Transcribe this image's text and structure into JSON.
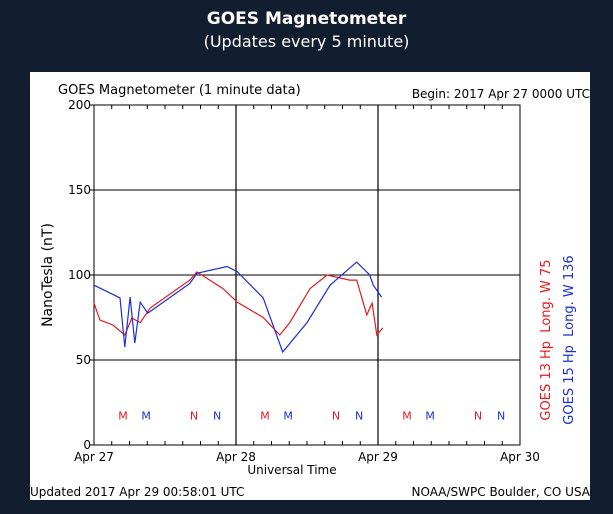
{
  "page": {
    "title": "GOES Magnetometer",
    "subtitle": "(Updates every 5 minute)"
  },
  "chart_data": {
    "type": "line",
    "title": "GOES Magnetometer (1 minute data)",
    "begin": "Begin:  2017 Apr 27 0000 UTC",
    "xlabel": "Universal Time",
    "ylabel": "NanoTesla (nT)",
    "ylim": [
      0,
      200
    ],
    "yticks": [
      0,
      50,
      100,
      150,
      200
    ],
    "xlim_hours": [
      0,
      72
    ],
    "xtick_labels": [
      "Apr 27",
      "Apr 28",
      "Apr 29",
      "Apr 30"
    ],
    "grid": true,
    "footer_left": "Updated 2017 Apr 29 00:58:01 UTC",
    "footer_right": "NOAA/SWPC Boulder, CO USA",
    "colors": {
      "red": "#e8191e",
      "blue": "#1a2fd6"
    },
    "series": [
      {
        "name": "GOES 13 Hp  Long. W 75",
        "color": "#e8191e",
        "t": [
          0,
          1,
          3.2,
          5.2,
          6.4,
          7.8,
          9.5,
          16.2,
          17.4,
          21.8,
          24.2,
          28.6,
          31.4,
          33.1,
          36.5,
          39.4,
          43.2,
          44.4,
          46.1,
          47,
          47.8,
          48.8
        ],
        "values": [
          83.5,
          73.5,
          70.6,
          64.7,
          74.7,
          72,
          80.6,
          97,
          101.8,
          92,
          84,
          75,
          64.7,
          72,
          92,
          100,
          97,
          97,
          76.5,
          83.5,
          64.7,
          68.8
        ]
      },
      {
        "name": "GOES 15 Hp  Long. W 136",
        "color": "#1a2fd6",
        "t": [
          0,
          4.4,
          5.2,
          6.1,
          6.9,
          7.8,
          9.1,
          16.2,
          17.4,
          22.5,
          24.2,
          28.6,
          31.9,
          36,
          39.9,
          44.4,
          46.6,
          47.2,
          48.6
        ],
        "values": [
          94,
          86.5,
          57.6,
          87,
          60,
          84,
          77.6,
          95,
          101,
          105,
          102,
          86.5,
          54.7,
          72,
          94,
          107.6,
          100,
          94,
          87
        ]
      }
    ],
    "markers": [
      {
        "label": "M",
        "color": "#e8191e",
        "t": [
          4.9,
          28.9,
          52.9
        ]
      },
      {
        "label": "M",
        "color": "#1a2fd6",
        "t": [
          8.8,
          32.8,
          56.8
        ]
      },
      {
        "label": "N",
        "color": "#e8191e",
        "t": [
          16.9,
          40.9,
          64.9
        ]
      },
      {
        "label": "N",
        "color": "#1a2fd6",
        "t": [
          20.8,
          44.8,
          68.8
        ]
      }
    ]
  }
}
